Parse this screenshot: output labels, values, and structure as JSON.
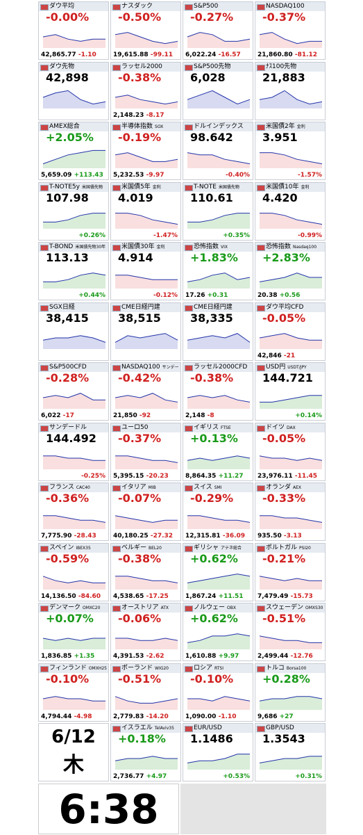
{
  "date": "6/12",
  "weekday": "木",
  "time": "6:38",
  "tiles": [
    {
      "name": "ダウ平均",
      "big": "-0.00%",
      "price": "42,865.77",
      "change": "-1.10",
      "trend": [
        5,
        6,
        4,
        3,
        4,
        4
      ]
    },
    {
      "name": "ナスダック",
      "big": "-0.50%",
      "price": "19,615.88",
      "change": "-99.11",
      "trend": [
        6,
        7,
        5,
        3,
        2,
        3
      ]
    },
    {
      "name": "S&P500",
      "big": "-0.27%",
      "price": "6,022.24",
      "change": "-16.57",
      "trend": [
        5,
        7,
        6,
        3,
        3,
        4
      ]
    },
    {
      "name": "NASDAQ100",
      "big": "-0.37%",
      "price": "21,860.80",
      "change": "-81.12",
      "trend": [
        6,
        7,
        4,
        2,
        3,
        3
      ]
    },
    {
      "name": "ダウ先物",
      "big": "42,898",
      "trend": [
        5,
        7,
        8,
        4,
        2,
        3
      ]
    },
    {
      "name": "ラッセル2000",
      "big": "-0.38%",
      "price": "2,148.23",
      "change": "-8.17",
      "trend": [
        5,
        6,
        4,
        3,
        2,
        3
      ]
    },
    {
      "name": "S&P500先物",
      "big": "6,028",
      "trend": [
        4,
        6,
        8,
        5,
        2,
        4
      ]
    },
    {
      "name": "ﾅｽ100先物",
      "big": "21,883",
      "trend": [
        4,
        5,
        8,
        4,
        2,
        3
      ]
    },
    {
      "name": "AMEX総合",
      "big": "+2.05%",
      "price": "5,659.09",
      "change": "+113.43",
      "trend": [
        2,
        4,
        6,
        7,
        8,
        8
      ]
    },
    {
      "name": "半導体指数",
      "sub": "SOX",
      "big": "-0.19%",
      "price": "5,232.53",
      "change": "-9.97",
      "trend": [
        6,
        7,
        5,
        3,
        3,
        4
      ]
    },
    {
      "name": "ドルインデックス",
      "big": "98.642",
      "change": "-0.40%",
      "trend": [
        7,
        6,
        6,
        4,
        3,
        2
      ]
    },
    {
      "name": "米国債2年",
      "sub": "金利",
      "big": "3.951",
      "change": "-1.57%",
      "trend": [
        7,
        7,
        6,
        4,
        3,
        2
      ]
    },
    {
      "name": "T-NOTE5y",
      "sub": "米国債先物",
      "big": "107.98",
      "change": "+0.26%",
      "trend": [
        3,
        3,
        4,
        6,
        7,
        7
      ]
    },
    {
      "name": "米国債5年",
      "sub": "金利",
      "big": "4.019",
      "change": "-1.47%",
      "trend": [
        7,
        7,
        6,
        4,
        3,
        2
      ]
    },
    {
      "name": "T-NOTE",
      "sub": "米国債先物",
      "big": "110.61",
      "change": "+0.35%",
      "trend": [
        3,
        3,
        4,
        6,
        7,
        7
      ]
    },
    {
      "name": "米国債10年",
      "sub": "金利",
      "big": "4.420",
      "change": "-0.99%",
      "trend": [
        7,
        7,
        6,
        4,
        3,
        2
      ]
    },
    {
      "name": "T-BOND",
      "sub": "米国債先物30年",
      "big": "113.13",
      "change": "+0.44%",
      "trend": [
        3,
        3,
        4,
        6,
        7,
        6
      ]
    },
    {
      "name": "米国債30年",
      "sub": "金利",
      "big": "4.914",
      "change": "-0.12%",
      "trend": [
        6,
        6,
        5,
        4,
        4,
        4
      ]
    },
    {
      "name": "恐怖指数",
      "sub": "VIX",
      "big": "+1.83%",
      "price": "17.26",
      "change": "+0.31",
      "trend": [
        3,
        4,
        6,
        7,
        4,
        5
      ]
    },
    {
      "name": "恐怖指数",
      "sub": "Nasdaq100",
      "big": "+2.83%",
      "price": "20.38",
      "change": "+0.56",
      "trend": [
        3,
        4,
        5,
        7,
        5,
        5
      ]
    },
    {
      "name": "SGX日経",
      "big": "38,415",
      "trend": [
        4,
        5,
        5,
        6,
        5,
        3
      ]
    },
    {
      "name": "CME日経円建",
      "big": "38,515",
      "trend": [
        3,
        6,
        5,
        6,
        7,
        4
      ]
    },
    {
      "name": "CME日経円建",
      "big": "38,335",
      "trend": [
        4,
        5,
        6,
        5,
        7,
        3
      ]
    },
    {
      "name": "ダウ平均CFD",
      "big": "-0.05%",
      "price": "42,846",
      "change": "-21",
      "trend": [
        5,
        6,
        7,
        5,
        4,
        4
      ]
    },
    {
      "name": "S&P500CFD",
      "big": "-0.28%",
      "price": "6,022",
      "change": "-17",
      "trend": [
        5,
        6,
        5,
        7,
        4,
        4
      ]
    },
    {
      "name": "NASDAQ100",
      "sub": "サンデー",
      "big": "-0.42%",
      "price": "21,850",
      "change": "-92",
      "trend": [
        5,
        6,
        5,
        7,
        4,
        3
      ]
    },
    {
      "name": "ラッセル2000CFD",
      "big": "-0.38%",
      "price": "2,148",
      "change": "-8",
      "trend": [
        5,
        6,
        5,
        6,
        4,
        3
      ]
    },
    {
      "name": "USD円",
      "sub": "USDT/JPY",
      "big": "144.721",
      "change": "+0.14%",
      "trend": [
        3,
        3,
        4,
        5,
        6,
        6
      ]
    },
    {
      "name": "サンデードル",
      "big": "144.492",
      "change": "-0.25%",
      "trend": [
        6,
        6,
        5,
        5,
        4,
        4
      ]
    },
    {
      "name": "ユーロ50",
      "big": "-0.37%",
      "price": "5,395.15",
      "change": "-20.23",
      "trend": [
        6,
        6,
        5,
        4,
        4,
        3
      ]
    },
    {
      "name": "イギリス",
      "sub": "FTSE",
      "big": "+0.13%",
      "price": "8,864.35",
      "change": "+11.27",
      "trend": [
        4,
        5,
        4,
        5,
        6,
        5
      ]
    },
    {
      "name": "ドイツ",
      "sub": "DAX",
      "big": "-0.05%",
      "price": "23,976.11",
      "change": "-11.45",
      "trend": [
        6,
        5,
        5,
        4,
        5,
        4
      ]
    },
    {
      "name": "フランス",
      "sub": "CAC40",
      "big": "-0.36%",
      "price": "7,775.90",
      "change": "-28.43",
      "trend": [
        6,
        6,
        5,
        4,
        4,
        3
      ]
    },
    {
      "name": "イタリア",
      "sub": "MIB",
      "big": "-0.07%",
      "price": "40,180.25",
      "change": "-27.32",
      "trend": [
        6,
        5,
        4,
        3,
        4,
        4
      ]
    },
    {
      "name": "スイス",
      "sub": "SMI",
      "big": "-0.29%",
      "price": "12,315.81",
      "change": "-36.09",
      "trend": [
        6,
        6,
        5,
        4,
        4,
        3
      ]
    },
    {
      "name": "オランダ",
      "sub": "AEX",
      "big": "-0.33%",
      "price": "935.50",
      "change": "-3.13",
      "trend": [
        6,
        6,
        5,
        5,
        4,
        3
      ]
    },
    {
      "name": "スペイン",
      "sub": "IBEX35",
      "big": "-0.59%",
      "price": "14,136.50",
      "change": "-84.60",
      "trend": [
        6,
        4,
        3,
        4,
        3,
        3
      ]
    },
    {
      "name": "ベルギー",
      "sub": "BEL20",
      "big": "-0.38%",
      "price": "4,538.65",
      "change": "-17.25",
      "trend": [
        6,
        6,
        5,
        4,
        4,
        3
      ]
    },
    {
      "name": "ギリシャ",
      "sub": "アテネ総合",
      "big": "+0.62%",
      "price": "1,867.24",
      "change": "+11.51",
      "trend": [
        3,
        4,
        5,
        6,
        7,
        6
      ]
    },
    {
      "name": "ポルトガル",
      "sub": "PSI20",
      "big": "-0.21%",
      "price": "7,479.49",
      "change": "-15.73",
      "trend": [
        6,
        5,
        4,
        5,
        4,
        4
      ]
    },
    {
      "name": "デンマーク",
      "sub": "OMXC20",
      "big": "+0.07%",
      "price": "1,836.85",
      "change": "+1.35",
      "trend": [
        5,
        4,
        5,
        4,
        5,
        5
      ]
    },
    {
      "name": "オーストリア",
      "sub": "ATX",
      "big": "-0.06%",
      "price": "4,391.53",
      "change": "-2.62",
      "trend": [
        5,
        5,
        4,
        4,
        5,
        4
      ]
    },
    {
      "name": "ノルウェー",
      "sub": "OBX",
      "big": "+0.62%",
      "price": "1,610.88",
      "change": "+9.97",
      "trend": [
        3,
        4,
        6,
        6,
        7,
        6
      ]
    },
    {
      "name": "スウェーデン",
      "sub": "OMXS30",
      "big": "-0.51%",
      "price": "2,499.44",
      "change": "-12.76",
      "trend": [
        6,
        5,
        4,
        4,
        3,
        3
      ]
    },
    {
      "name": "フィンランド",
      "sub": "OMXH25",
      "big": "-0.10%",
      "price": "4,794.44",
      "change": "-4.98",
      "trend": [
        5,
        6,
        5,
        5,
        4,
        4
      ]
    },
    {
      "name": "ポーランド",
      "sub": "WIG20",
      "big": "-0.51%",
      "price": "2,779.83",
      "change": "-14.20",
      "trend": [
        6,
        4,
        3,
        3,
        4,
        5
      ]
    },
    {
      "name": "ロシア",
      "sub": "RTSI",
      "big": "-0.10%",
      "price": "1,090.00",
      "change": "-1.10",
      "trend": [
        5,
        5,
        4,
        6,
        5,
        4
      ]
    },
    {
      "name": "トルコ",
      "sub": "Borsa100",
      "big": "+0.28%",
      "price": "9,686",
      "change": "+27",
      "trend": [
        4,
        5,
        5,
        6,
        6,
        5
      ]
    },
    {
      "name": "イスラエル",
      "sub": "TelAviv35",
      "big": "+0.18%",
      "price": "2,736.77",
      "change": "+4.97",
      "trend": [
        4,
        5,
        5,
        6,
        5,
        5
      ]
    },
    {
      "name": "EUR/USD",
      "big": "1.1486",
      "change": "+0.53%",
      "trend": [
        3,
        4,
        4,
        5,
        7,
        7
      ]
    },
    {
      "name": "GBP/USD",
      "big": "1.3543",
      "change": "+0.31%",
      "trend": [
        3,
        4,
        5,
        5,
        6,
        6
      ]
    }
  ]
}
